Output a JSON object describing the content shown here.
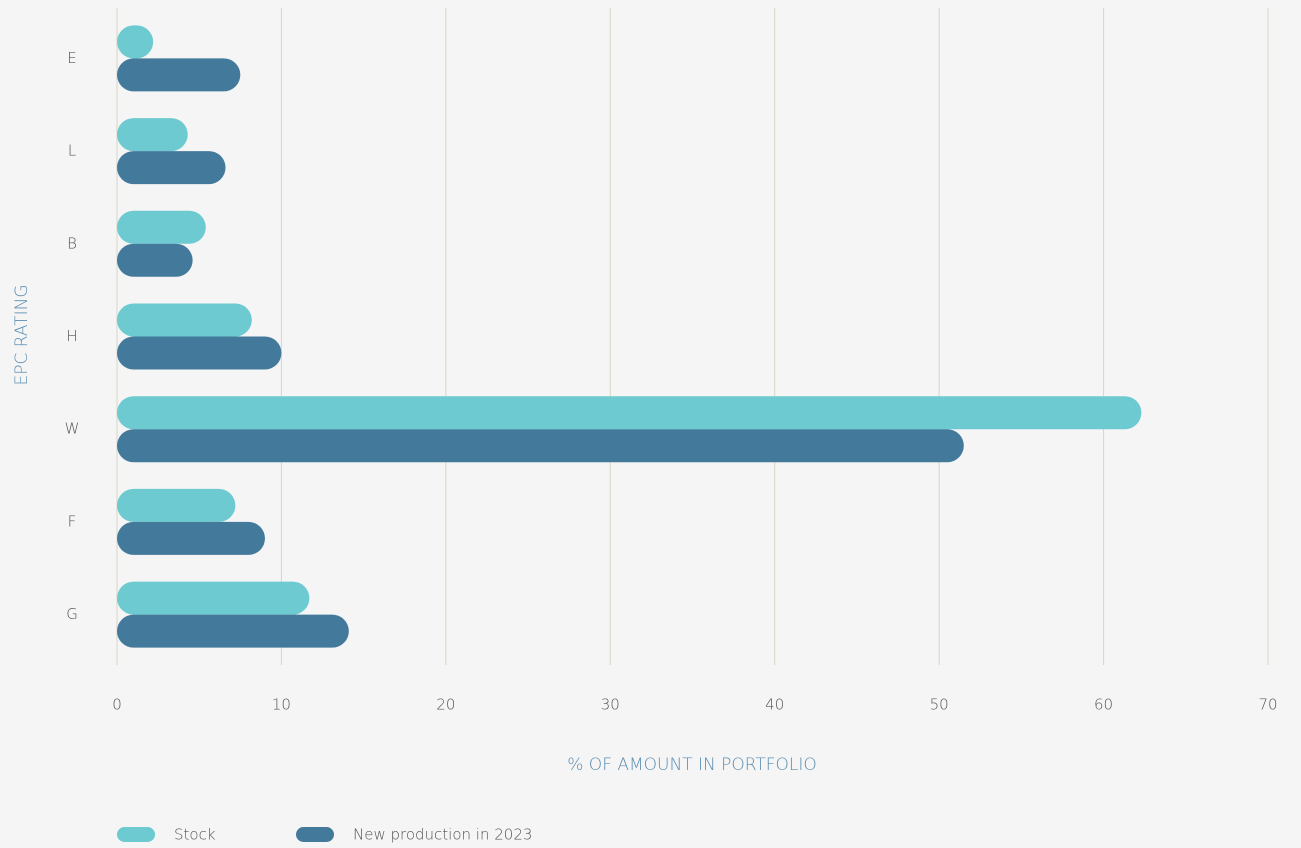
{
  "chart_data": {
    "type": "bar",
    "orientation": "horizontal",
    "categories": [
      "E",
      "L",
      "B",
      "H",
      "W",
      "F",
      "G"
    ],
    "series": [
      {
        "name": "Stock",
        "color": "#6dcad0",
        "values": [
          2.2,
          4.3,
          5.4,
          8.2,
          62.3,
          7.2,
          11.7
        ]
      },
      {
        "name": "New production in 2023",
        "color": "#437a9c",
        "values": [
          7.5,
          6.6,
          4.6,
          10.0,
          51.5,
          9.0,
          14.1
        ]
      }
    ],
    "xlabel": "% OF AMOUNT IN PORTFOLIO",
    "ylabel": "EPC RATING",
    "xlim": [
      0,
      70
    ],
    "xticks": [
      0,
      10,
      20,
      30,
      40,
      50,
      60,
      70
    ],
    "grid": true,
    "legend": "bottom-left"
  }
}
